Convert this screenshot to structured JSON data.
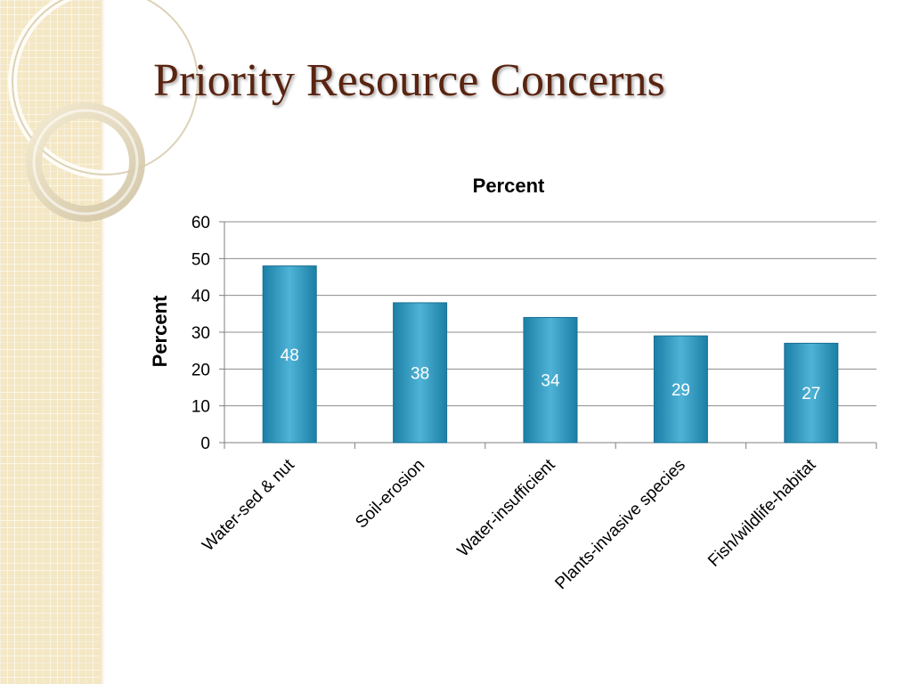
{
  "slide": {
    "title": "Priority Resource Concerns"
  },
  "colors": {
    "title": "#5a2410",
    "bar_light": "#4fb3d6",
    "bar_dark": "#1b7fa6",
    "gridline": "#8c8c8c",
    "side_pattern": "#f4e7c4"
  },
  "chart_data": {
    "type": "bar",
    "title": "Percent",
    "xlabel": "",
    "ylabel": "Percent",
    "categories": [
      "Water-sed & nut",
      "Soil-erosion",
      "Water-insufficient",
      "Plants-invasive species",
      "Fish/wildlife-habitat"
    ],
    "values": [
      48,
      38,
      34,
      29,
      27
    ],
    "ylim": [
      0,
      60
    ],
    "yticks": [
      0,
      10,
      20,
      30,
      40,
      50,
      60
    ],
    "grid": true,
    "legend": "none"
  }
}
